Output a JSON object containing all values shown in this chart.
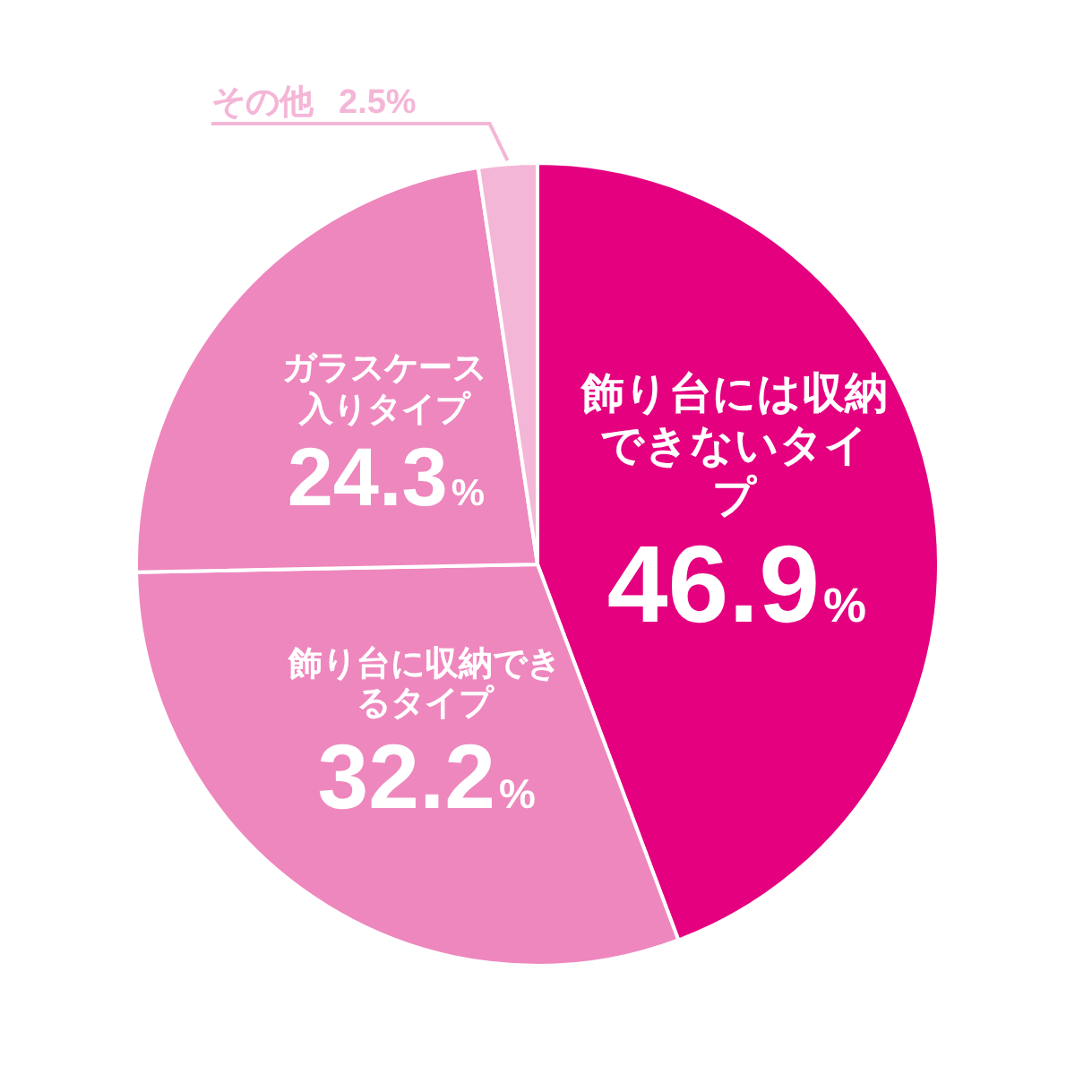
{
  "chart_data": {
    "type": "pie",
    "categories": [
      "飾り台には収納できないタイプ",
      "飾り台に収納できるタイプ",
      "ガラスケース入りタイプ",
      "その他"
    ],
    "values": [
      46.9,
      32.2,
      24.3,
      2.5
    ],
    "value_labels": [
      "46.9%",
      "32.2%",
      "24.3%",
      "2.5%"
    ],
    "colors": [
      "#e4007f",
      "#ee87bd",
      "#ee87bd",
      "#f4b6d6"
    ],
    "legend": false
  }
}
